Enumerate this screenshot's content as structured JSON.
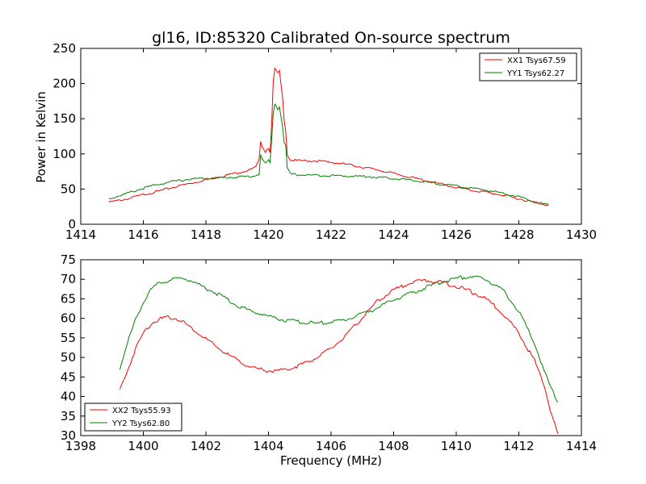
{
  "chart_data": [
    {
      "type": "line",
      "title": "gl16, ID:85320 Calibrated On-source spectrum",
      "xlabel": "",
      "ylabel": "Power in Kelvin",
      "xlim": [
        1414,
        1430
      ],
      "ylim": [
        0,
        250
      ],
      "xticks": [
        1414,
        1416,
        1418,
        1420,
        1422,
        1424,
        1426,
        1428,
        1430
      ],
      "yticks": [
        0,
        50,
        100,
        150,
        200,
        250
      ],
      "legend_position": "top-right",
      "series": [
        {
          "name": "XX1 Tsys67.59",
          "color": "#ff0000",
          "points": [
            [
              1414.9,
              32
            ],
            [
              1415.5,
              37
            ],
            [
              1416,
              43
            ],
            [
              1416.5,
              48
            ],
            [
              1417,
              54
            ],
            [
              1417.5,
              59
            ],
            [
              1418,
              64
            ],
            [
              1418.5,
              69
            ],
            [
              1419,
              74
            ],
            [
              1419.4,
              78
            ],
            [
              1419.6,
              82
            ],
            [
              1419.7,
              92
            ],
            [
              1419.75,
              120
            ],
            [
              1419.8,
              112
            ],
            [
              1419.9,
              104
            ],
            [
              1420.0,
              110
            ],
            [
              1420.05,
              104
            ],
            [
              1420.1,
              140
            ],
            [
              1420.15,
              200
            ],
            [
              1420.2,
              222
            ],
            [
              1420.3,
              215
            ],
            [
              1420.35,
              218
            ],
            [
              1420.45,
              180
            ],
            [
              1420.5,
              150
            ],
            [
              1420.55,
              135
            ],
            [
              1420.6,
              100
            ],
            [
              1420.7,
              92
            ],
            [
              1421,
              91
            ],
            [
              1421.5,
              91
            ],
            [
              1422,
              89
            ],
            [
              1422.5,
              86
            ],
            [
              1423,
              82
            ],
            [
              1423.5,
              78
            ],
            [
              1424,
              73
            ],
            [
              1424.5,
              68
            ],
            [
              1425,
              63
            ],
            [
              1425.5,
              58
            ],
            [
              1426,
              53
            ],
            [
              1426.5,
              49
            ],
            [
              1427,
              46
            ],
            [
              1427.5,
              42
            ],
            [
              1428,
              37
            ],
            [
              1428.5,
              32
            ],
            [
              1428.95,
              28
            ]
          ]
        },
        {
          "name": "YY1 Tsys62.27",
          "color": "#008000",
          "points": [
            [
              1414.9,
              37
            ],
            [
              1415.5,
              45
            ],
            [
              1416,
              52
            ],
            [
              1416.5,
              58
            ],
            [
              1417,
              62
            ],
            [
              1417.5,
              65
            ],
            [
              1418,
              66
            ],
            [
              1418.5,
              67
            ],
            [
              1419,
              68
            ],
            [
              1419.5,
              69
            ],
            [
              1419.7,
              72
            ],
            [
              1419.75,
              100
            ],
            [
              1419.8,
              93
            ],
            [
              1419.9,
              87
            ],
            [
              1420.0,
              92
            ],
            [
              1420.05,
              87
            ],
            [
              1420.1,
              120
            ],
            [
              1420.15,
              158
            ],
            [
              1420.2,
              172
            ],
            [
              1420.3,
              165
            ],
            [
              1420.35,
              168
            ],
            [
              1420.45,
              140
            ],
            [
              1420.5,
              118
            ],
            [
              1420.55,
              112
            ],
            [
              1420.6,
              80
            ],
            [
              1420.7,
              72
            ],
            [
              1421,
              71
            ],
            [
              1422,
              70
            ],
            [
              1423,
              69
            ],
            [
              1424,
              66
            ],
            [
              1425,
              61
            ],
            [
              1426,
              55
            ],
            [
              1427,
              49
            ],
            [
              1427.5,
              45
            ],
            [
              1428,
              40
            ],
            [
              1428.5,
              33
            ],
            [
              1428.95,
              28
            ]
          ]
        }
      ]
    },
    {
      "type": "line",
      "title": "",
      "xlabel": "Frequency (MHz)",
      "ylabel": "",
      "xlim": [
        1398,
        1414
      ],
      "ylim": [
        30,
        75
      ],
      "xticks": [
        1398,
        1400,
        1402,
        1404,
        1406,
        1408,
        1410,
        1412,
        1414
      ],
      "yticks": [
        30,
        35,
        40,
        45,
        50,
        55,
        60,
        65,
        70,
        75
      ],
      "legend_position": "bottom-left",
      "series": [
        {
          "name": "XX2 Tsys55.93",
          "color": "#ff0000",
          "points": [
            [
              1399.25,
              42
            ],
            [
              1399.5,
              47
            ],
            [
              1399.75,
              52.5
            ],
            [
              1400,
              56.5
            ],
            [
              1400.25,
              59
            ],
            [
              1400.5,
              60
            ],
            [
              1400.75,
              60.5
            ],
            [
              1401,
              60.3
            ],
            [
              1401.25,
              59.5
            ],
            [
              1401.5,
              58
            ],
            [
              1402,
              55
            ],
            [
              1402.5,
              52
            ],
            [
              1403,
              49.5
            ],
            [
              1403.5,
              47.5
            ],
            [
              1404,
              46.8
            ],
            [
              1404.5,
              47
            ],
            [
              1405,
              48.3
            ],
            [
              1405.5,
              50
            ],
            [
              1406,
              52.5
            ],
            [
              1406.5,
              56
            ],
            [
              1407,
              60.5
            ],
            [
              1407.5,
              64.8
            ],
            [
              1408,
              67.5
            ],
            [
              1408.5,
              69.3
            ],
            [
              1409,
              70
            ],
            [
              1409.5,
              69.5
            ],
            [
              1410,
              68.5
            ],
            [
              1410.5,
              67
            ],
            [
              1411,
              65
            ],
            [
              1411.5,
              61.5
            ],
            [
              1412,
              56.5
            ],
            [
              1412.5,
              49.5
            ],
            [
              1412.8,
              43.5
            ],
            [
              1413,
              37
            ],
            [
              1413.25,
              30.5
            ]
          ]
        },
        {
          "name": "YY2 Tsys62.80",
          "color": "#008000",
          "points": [
            [
              1399.25,
              47.5
            ],
            [
              1399.5,
              54
            ],
            [
              1399.75,
              60
            ],
            [
              1400,
              64.5
            ],
            [
              1400.25,
              67.5
            ],
            [
              1400.5,
              69.3
            ],
            [
              1401,
              70.3
            ],
            [
              1401.3,
              70.6
            ],
            [
              1401.5,
              70
            ],
            [
              1402,
              68
            ],
            [
              1402.5,
              66
            ],
            [
              1403,
              63.5
            ],
            [
              1403.5,
              62
            ],
            [
              1404,
              60.8
            ],
            [
              1404.5,
              59.8
            ],
            [
              1405,
              59.3
            ],
            [
              1405.5,
              59
            ],
            [
              1406,
              59.3
            ],
            [
              1406.5,
              60
            ],
            [
              1407,
              61.5
            ],
            [
              1407.5,
              63
            ],
            [
              1408,
              65
            ],
            [
              1408.5,
              66.5
            ],
            [
              1409,
              68
            ],
            [
              1409.5,
              69.5
            ],
            [
              1410,
              70.5
            ],
            [
              1410.5,
              71
            ],
            [
              1411,
              70
            ],
            [
              1411.5,
              67.5
            ],
            [
              1412,
              62
            ],
            [
              1412.5,
              54
            ],
            [
              1412.8,
              47
            ],
            [
              1413,
              43
            ],
            [
              1413.25,
              38.5
            ]
          ]
        }
      ]
    }
  ]
}
